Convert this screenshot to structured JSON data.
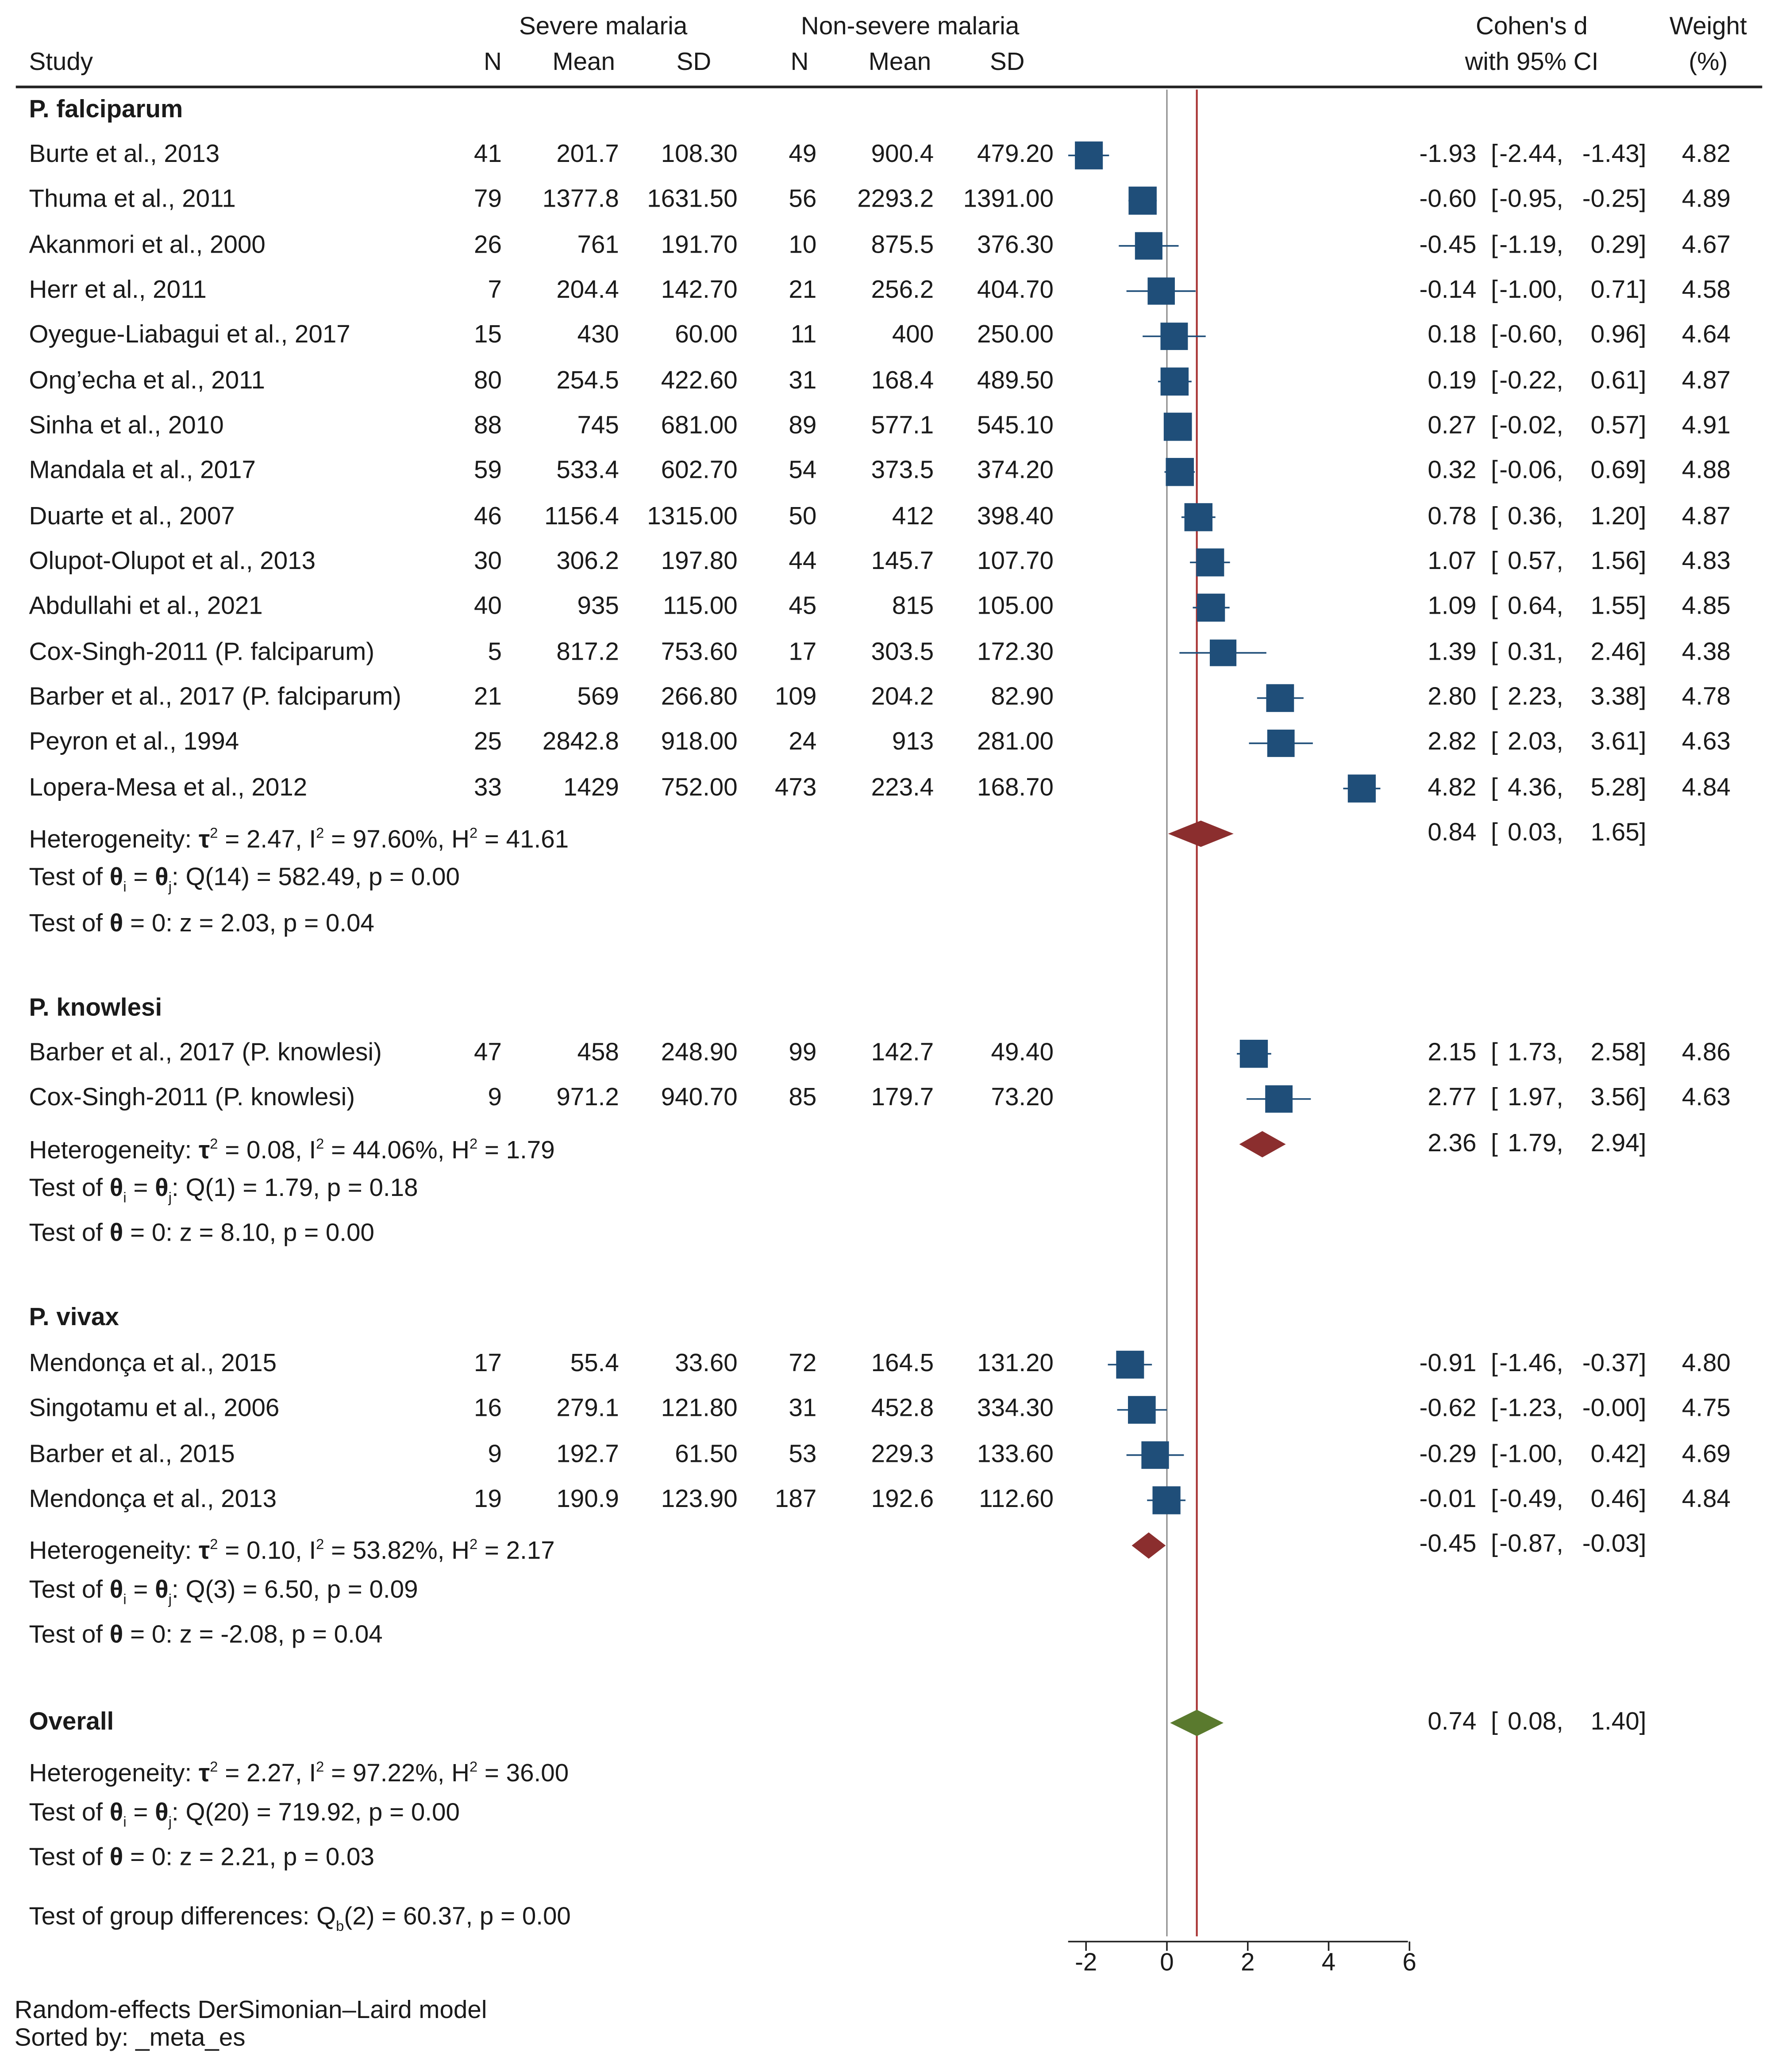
{
  "header": {
    "study": "Study",
    "severe_group": "Severe malaria",
    "nonsevere_group": "Non-severe malaria",
    "n": "N",
    "mean": "Mean",
    "sd": "SD",
    "effect_line1": "Cohen's d",
    "effect_line2": "with 95% CI",
    "weight_line1": "Weight",
    "weight_line2": "(%)"
  },
  "groups": [
    {
      "name": "P. falciparum",
      "studies": [
        {
          "study": "Burte et al., 2013",
          "n1": "41",
          "mean1": "201.7",
          "sd1": "108.30",
          "n2": "49",
          "mean2": "900.4",
          "sd2": "479.20",
          "d": "-1.93",
          "lo": "-2.44,",
          "hi": "-1.43]",
          "weight": "4.82",
          "es": -1.93,
          "ci_lo": -2.44,
          "ci_hi": -1.43,
          "w": 4.82
        },
        {
          "study": "Thuma et al., 2011",
          "n1": "79",
          "mean1": "1377.8",
          "sd1": "1631.50",
          "n2": "56",
          "mean2": "2293.2",
          "sd2": "1391.00",
          "d": "-0.60",
          "lo": "-0.95,",
          "hi": "-0.25]",
          "weight": "4.89",
          "es": -0.6,
          "ci_lo": -0.95,
          "ci_hi": -0.25,
          "w": 4.89
        },
        {
          "study": "Akanmori et al., 2000",
          "n1": "26",
          "mean1": "761",
          "sd1": "191.70",
          "n2": "10",
          "mean2": "875.5",
          "sd2": "376.30",
          "d": "-0.45",
          "lo": "-1.19,",
          "hi": "0.29]",
          "weight": "4.67",
          "es": -0.45,
          "ci_lo": -1.19,
          "ci_hi": 0.29,
          "w": 4.67
        },
        {
          "study": "Herr et al., 2011",
          "n1": "7",
          "mean1": "204.4",
          "sd1": "142.70",
          "n2": "21",
          "mean2": "256.2",
          "sd2": "404.70",
          "d": "-0.14",
          "lo": "-1.00,",
          "hi": "0.71]",
          "weight": "4.58",
          "es": -0.14,
          "ci_lo": -1.0,
          "ci_hi": 0.71,
          "w": 4.58
        },
        {
          "study": "Oyegue-Liabagui et al., 2017",
          "n1": "15",
          "mean1": "430",
          "sd1": "60.00",
          "n2": "11",
          "mean2": "400",
          "sd2": "250.00",
          "d": "0.18",
          "lo": "-0.60,",
          "hi": "0.96]",
          "weight": "4.64",
          "es": 0.18,
          "ci_lo": -0.6,
          "ci_hi": 0.96,
          "w": 4.64
        },
        {
          "study": "Ong’echa et al., 2011",
          "n1": "80",
          "mean1": "254.5",
          "sd1": "422.60",
          "n2": "31",
          "mean2": "168.4",
          "sd2": "489.50",
          "d": "0.19",
          "lo": "-0.22,",
          "hi": "0.61]",
          "weight": "4.87",
          "es": 0.19,
          "ci_lo": -0.22,
          "ci_hi": 0.61,
          "w": 4.87
        },
        {
          "study": "Sinha et al., 2010",
          "n1": "88",
          "mean1": "745",
          "sd1": "681.00",
          "n2": "89",
          "mean2": "577.1",
          "sd2": "545.10",
          "d": "0.27",
          "lo": "-0.02,",
          "hi": "0.57]",
          "weight": "4.91",
          "es": 0.27,
          "ci_lo": -0.02,
          "ci_hi": 0.57,
          "w": 4.91
        },
        {
          "study": "Mandala et al., 2017",
          "n1": "59",
          "mean1": "533.4",
          "sd1": "602.70",
          "n2": "54",
          "mean2": "373.5",
          "sd2": "374.20",
          "d": "0.32",
          "lo": "-0.06,",
          "hi": "0.69]",
          "weight": "4.88",
          "es": 0.32,
          "ci_lo": -0.06,
          "ci_hi": 0.69,
          "w": 4.88
        },
        {
          "study": "Duarte et al., 2007",
          "n1": "46",
          "mean1": "1156.4",
          "sd1": "1315.00",
          "n2": "50",
          "mean2": "412",
          "sd2": "398.40",
          "d": "0.78",
          "lo": "0.36,",
          "hi": "1.20]",
          "weight": "4.87",
          "es": 0.78,
          "ci_lo": 0.36,
          "ci_hi": 1.2,
          "w": 4.87
        },
        {
          "study": "Olupot-Olupot et al., 2013",
          "n1": "30",
          "mean1": "306.2",
          "sd1": "197.80",
          "n2": "44",
          "mean2": "145.7",
          "sd2": "107.70",
          "d": "1.07",
          "lo": "0.57,",
          "hi": "1.56]",
          "weight": "4.83",
          "es": 1.07,
          "ci_lo": 0.57,
          "ci_hi": 1.56,
          "w": 4.83
        },
        {
          "study": "Abdullahi et al., 2021",
          "n1": "40",
          "mean1": "935",
          "sd1": "115.00",
          "n2": "45",
          "mean2": "815",
          "sd2": "105.00",
          "d": "1.09",
          "lo": "0.64,",
          "hi": "1.55]",
          "weight": "4.85",
          "es": 1.09,
          "ci_lo": 0.64,
          "ci_hi": 1.55,
          "w": 4.85
        },
        {
          "study": "Cox-Singh-2011 (P. falciparum)",
          "n1": "5",
          "mean1": "817.2",
          "sd1": "753.60",
          "n2": "17",
          "mean2": "303.5",
          "sd2": "172.30",
          "d": "1.39",
          "lo": "0.31,",
          "hi": "2.46]",
          "weight": "4.38",
          "es": 1.39,
          "ci_lo": 0.31,
          "ci_hi": 2.46,
          "w": 4.38
        },
        {
          "study": "Barber et al., 2017 (P. falciparum)",
          "n1": "21",
          "mean1": "569",
          "sd1": "266.80",
          "n2": "109",
          "mean2": "204.2",
          "sd2": "82.90",
          "d": "2.80",
          "lo": "2.23,",
          "hi": "3.38]",
          "weight": "4.78",
          "es": 2.8,
          "ci_lo": 2.23,
          "ci_hi": 3.38,
          "w": 4.78
        },
        {
          "study": "Peyron et al., 1994",
          "n1": "25",
          "mean1": "2842.8",
          "sd1": "918.00",
          "n2": "24",
          "mean2": "913",
          "sd2": "281.00",
          "d": "2.82",
          "lo": "2.03,",
          "hi": "3.61]",
          "weight": "4.63",
          "es": 2.82,
          "ci_lo": 2.03,
          "ci_hi": 3.61,
          "w": 4.63
        },
        {
          "study": "Lopera-Mesa et al., 2012",
          "n1": "33",
          "mean1": "1429",
          "sd1": "752.00",
          "n2": "473",
          "mean2": "223.4",
          "sd2": "168.70",
          "d": "4.82",
          "lo": "4.36,",
          "hi": "5.28]",
          "weight": "4.84",
          "es": 4.82,
          "ci_lo": 4.36,
          "ci_hi": 5.28,
          "w": 4.84
        }
      ],
      "summary": {
        "d": "0.84",
        "lo": "0.03,",
        "hi": "1.65]",
        "es": 0.84,
        "ci_lo": 0.03,
        "ci_hi": 1.65
      },
      "het": {
        "tau2": "2.47",
        "i2": "97.60%",
        "h2": "41.61"
      },
      "q_test": {
        "df": "14",
        "q": "582.49",
        "p": "0.00"
      },
      "z_test": {
        "z": "2.03",
        "p": "0.04"
      }
    },
    {
      "name": "P. knowlesi",
      "studies": [
        {
          "study": "Barber et al., 2017 (P. knowlesi)",
          "n1": "47",
          "mean1": "458",
          "sd1": "248.90",
          "n2": "99",
          "mean2": "142.7",
          "sd2": "49.40",
          "d": "2.15",
          "lo": "1.73,",
          "hi": "2.58]",
          "weight": "4.86",
          "es": 2.15,
          "ci_lo": 1.73,
          "ci_hi": 2.58,
          "w": 4.86
        },
        {
          "study": "Cox-Singh-2011 (P. knowlesi)",
          "n1": "9",
          "mean1": "971.2",
          "sd1": "940.70",
          "n2": "85",
          "mean2": "179.7",
          "sd2": "73.20",
          "d": "2.77",
          "lo": "1.97,",
          "hi": "3.56]",
          "weight": "4.63",
          "es": 2.77,
          "ci_lo": 1.97,
          "ci_hi": 3.56,
          "w": 4.63
        }
      ],
      "summary": {
        "d": "2.36",
        "lo": "1.79,",
        "hi": "2.94]",
        "es": 2.36,
        "ci_lo": 1.79,
        "ci_hi": 2.94
      },
      "het": {
        "tau2": "0.08",
        "i2": "44.06%",
        "h2": "1.79"
      },
      "q_test": {
        "df": "1",
        "q": "1.79",
        "p": "0.18"
      },
      "z_test": {
        "z": "8.10",
        "p": "0.00"
      }
    },
    {
      "name": "P. vivax",
      "studies": [
        {
          "study": "Mendonça et al., 2015",
          "n1": "17",
          "mean1": "55.4",
          "sd1": "33.60",
          "n2": "72",
          "mean2": "164.5",
          "sd2": "131.20",
          "d": "-0.91",
          "lo": "-1.46,",
          "hi": "-0.37]",
          "weight": "4.80",
          "es": -0.91,
          "ci_lo": -1.46,
          "ci_hi": -0.37,
          "w": 4.8
        },
        {
          "study": "Singotamu et al., 2006",
          "n1": "16",
          "mean1": "279.1",
          "sd1": "121.80",
          "n2": "31",
          "mean2": "452.8",
          "sd2": "334.30",
          "d": "-0.62",
          "lo": "-1.23,",
          "hi": "-0.00]",
          "weight": "4.75",
          "es": -0.62,
          "ci_lo": -1.23,
          "ci_hi": -0.0,
          "w": 4.75
        },
        {
          "study": "Barber et al., 2015",
          "n1": "9",
          "mean1": "192.7",
          "sd1": "61.50",
          "n2": "53",
          "mean2": "229.3",
          "sd2": "133.60",
          "d": "-0.29",
          "lo": "-1.00,",
          "hi": "0.42]",
          "weight": "4.69",
          "es": -0.29,
          "ci_lo": -1.0,
          "ci_hi": 0.42,
          "w": 4.69
        },
        {
          "study": "Mendonça et al., 2013",
          "n1": "19",
          "mean1": "190.9",
          "sd1": "123.90",
          "n2": "187",
          "mean2": "192.6",
          "sd2": "112.60",
          "d": "-0.01",
          "lo": "-0.49,",
          "hi": "0.46]",
          "weight": "4.84",
          "es": -0.01,
          "ci_lo": -0.49,
          "ci_hi": 0.46,
          "w": 4.84
        }
      ],
      "summary": {
        "d": "-0.45",
        "lo": "-0.87,",
        "hi": "-0.03]",
        "es": -0.45,
        "ci_lo": -0.87,
        "ci_hi": -0.03
      },
      "het": {
        "tau2": "0.10",
        "i2": "53.82%",
        "h2": "2.17"
      },
      "q_test": {
        "df": "3",
        "q": "6.50",
        "p": "0.09"
      },
      "z_test": {
        "z": "-2.08",
        "p": "0.04"
      }
    }
  ],
  "overall": {
    "label": "Overall",
    "d": "0.74",
    "lo": "0.08,",
    "hi": "1.40]",
    "es": 0.74,
    "ci_lo": 0.08,
    "ci_hi": 1.4,
    "het": {
      "tau2": "2.27",
      "i2": "97.22%",
      "h2": "36.00"
    },
    "q_test": {
      "df": "20",
      "q": "719.92",
      "p": "0.00"
    },
    "z_test": {
      "z": "2.21",
      "p": "0.03"
    }
  },
  "group_diff": {
    "df": "2",
    "q": "60.37",
    "p": "0.00"
  },
  "axis": {
    "ticks": [
      "-2",
      "0",
      "2",
      "4",
      "6"
    ],
    "tick_values": [
      -2,
      0,
      2,
      4,
      6
    ]
  },
  "footer": {
    "model": "Random-effects DerSimonian–Laird model",
    "sorted": "Sorted by: _meta_es"
  },
  "colors": {
    "study_marker": "#1f4e79",
    "subgroup_diamond": "#8b2e2e",
    "overall_diamond": "#5a7a2e",
    "overall_line": "#a83232",
    "null_line": "#888888"
  },
  "chart_data": {
    "type": "forest",
    "title": "",
    "xlabel": "Cohen's d with 95% CI",
    "xlim": [
      -2,
      6
    ],
    "xticks": [
      -2,
      0,
      2,
      4,
      6
    ],
    "null_value": 0,
    "overall_effect": 0.74
  }
}
